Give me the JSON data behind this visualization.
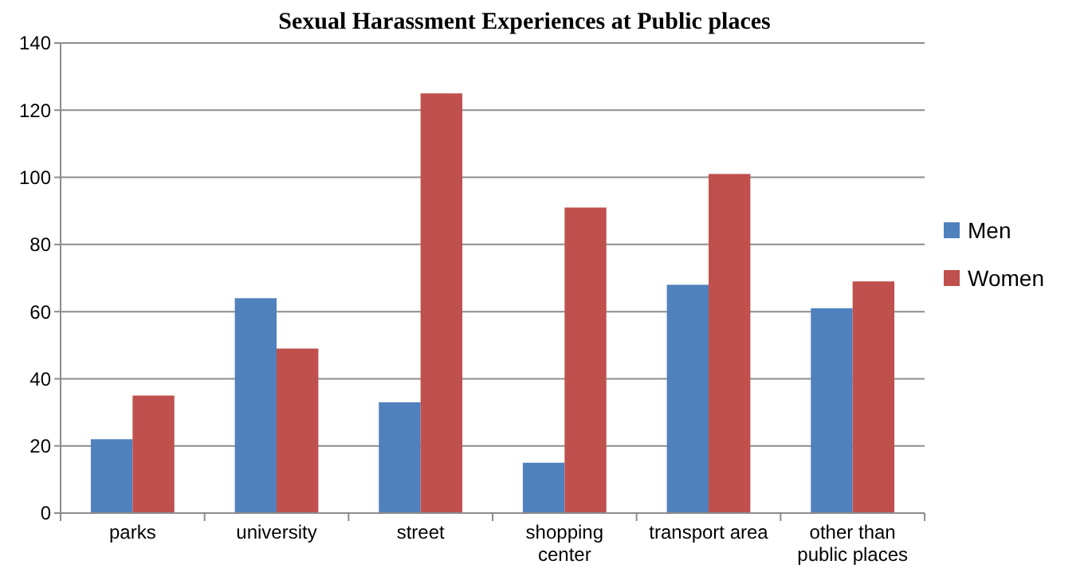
{
  "chart_data": {
    "type": "bar",
    "title": "Sexual Harassment Experiences at Public places",
    "categories": [
      "parks",
      "university",
      "street",
      "shopping center",
      "transport area",
      "other than public places"
    ],
    "series": [
      {
        "name": "Men",
        "color": "#4f81bd",
        "values": [
          22,
          64,
          33,
          15,
          68,
          61
        ]
      },
      {
        "name": "Women",
        "color": "#c0504d",
        "values": [
          35,
          49,
          125,
          91,
          101,
          69
        ]
      }
    ],
    "ylim": [
      0,
      140
    ],
    "yticks": [
      0,
      20,
      40,
      60,
      80,
      100,
      120,
      140
    ],
    "grid": "y",
    "legend": "right"
  }
}
